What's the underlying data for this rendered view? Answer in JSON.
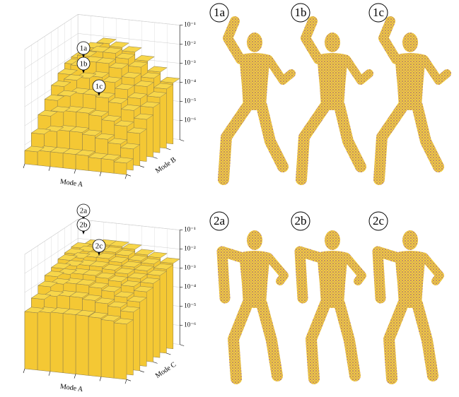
{
  "chart_data": [
    {
      "type": "bar3d",
      "xlabel": "Mode A",
      "ylabel": "Mode B",
      "zscale": "log",
      "color": "#f7d64a",
      "grid": true,
      "zlim": [
        1e-07,
        0.1
      ],
      "zticks": [
        {
          "value": 1e-06,
          "label": "10⁻⁶"
        },
        {
          "value": 1e-05,
          "label": "10⁻⁵"
        },
        {
          "value": 0.0001,
          "label": "10⁻⁴"
        },
        {
          "value": 0.001,
          "label": "10⁻³"
        },
        {
          "value": 0.01,
          "label": "10⁻²"
        },
        {
          "value": 0.1,
          "label": "10⁻¹"
        }
      ],
      "callouts": [
        "1a",
        "1b",
        "1c"
      ],
      "values": [
        [
          5e-07,
          6e-07,
          6e-07,
          6e-07,
          6e-07,
          5e-07,
          5e-07,
          4e-07
        ],
        [
          2.5e-06,
          4e-06,
          5e-06,
          5e-06,
          4e-06,
          3e-06,
          2e-06,
          1.3e-06
        ],
        [
          1.3e-05,
          2.5e-05,
          3e-05,
          3e-05,
          2.5e-05,
          1.6e-05,
          1e-05,
          5e-06
        ],
        [
          5e-05,
          0.0001,
          0.00016,
          0.00016,
          0.00013,
          8e-05,
          4e-05,
          1.6e-05
        ],
        [
          0.00016,
          0.0004,
          0.0006,
          0.0008,
          0.0005,
          0.00025,
          0.0001,
          4e-05
        ],
        [
          0.0004,
          0.0013,
          0.0025,
          0.0025,
          0.0016,
          0.0006,
          0.00025,
          8e-05
        ],
        [
          0.0008,
          0.0025,
          0.005,
          0.005,
          0.003,
          0.0013,
          0.0004,
          0.00013
        ],
        [
          0.001,
          0.004,
          0.008,
          0.006,
          0.004,
          0.0016,
          0.0005,
          0.00016
        ]
      ]
    },
    {
      "type": "bar3d",
      "xlabel": "Mode A",
      "ylabel": "Mode C",
      "zscale": "log",
      "color": "#f7d64a",
      "grid": true,
      "zlim": [
        1e-07,
        0.1
      ],
      "zticks": [
        {
          "value": 1e-06,
          "label": "10⁻⁶"
        },
        {
          "value": 1e-05,
          "label": "10⁻⁵"
        },
        {
          "value": 0.0001,
          "label": "10⁻⁴"
        },
        {
          "value": 0.001,
          "label": "10⁻³"
        },
        {
          "value": 0.01,
          "label": "10⁻²"
        },
        {
          "value": 0.1,
          "label": "10⁻¹"
        }
      ],
      "callouts": [
        "2a",
        "2b",
        "2c"
      ],
      "values": [
        [
          0.0001,
          0.00012,
          0.00013,
          0.00013,
          0.00013,
          0.00012,
          0.0001,
          8e-05
        ],
        [
          0.0003,
          0.0005,
          0.0006,
          0.0006,
          0.0005,
          0.0004,
          0.0003,
          0.0002
        ],
        [
          0.0008,
          0.0013,
          0.0016,
          0.0016,
          0.0013,
          0.001,
          0.0006,
          0.0004
        ],
        [
          0.0016,
          0.0025,
          0.003,
          0.003,
          0.0025,
          0.002,
          0.0013,
          0.0008
        ],
        [
          0.0025,
          0.004,
          0.005,
          0.005,
          0.004,
          0.003,
          0.002,
          0.0013
        ],
        [
          0.004,
          0.006,
          0.008,
          0.008,
          0.006,
          0.004,
          0.003,
          0.002
        ],
        [
          0.005,
          0.008,
          0.01,
          0.01,
          0.008,
          0.005,
          0.004,
          0.0025
        ],
        [
          0.006,
          0.01,
          0.012,
          0.012,
          0.01,
          0.006,
          0.005,
          0.003
        ]
      ]
    }
  ],
  "renders": [
    [
      "1a",
      "1b",
      "1c"
    ],
    [
      "2a",
      "2b",
      "2c"
    ]
  ]
}
